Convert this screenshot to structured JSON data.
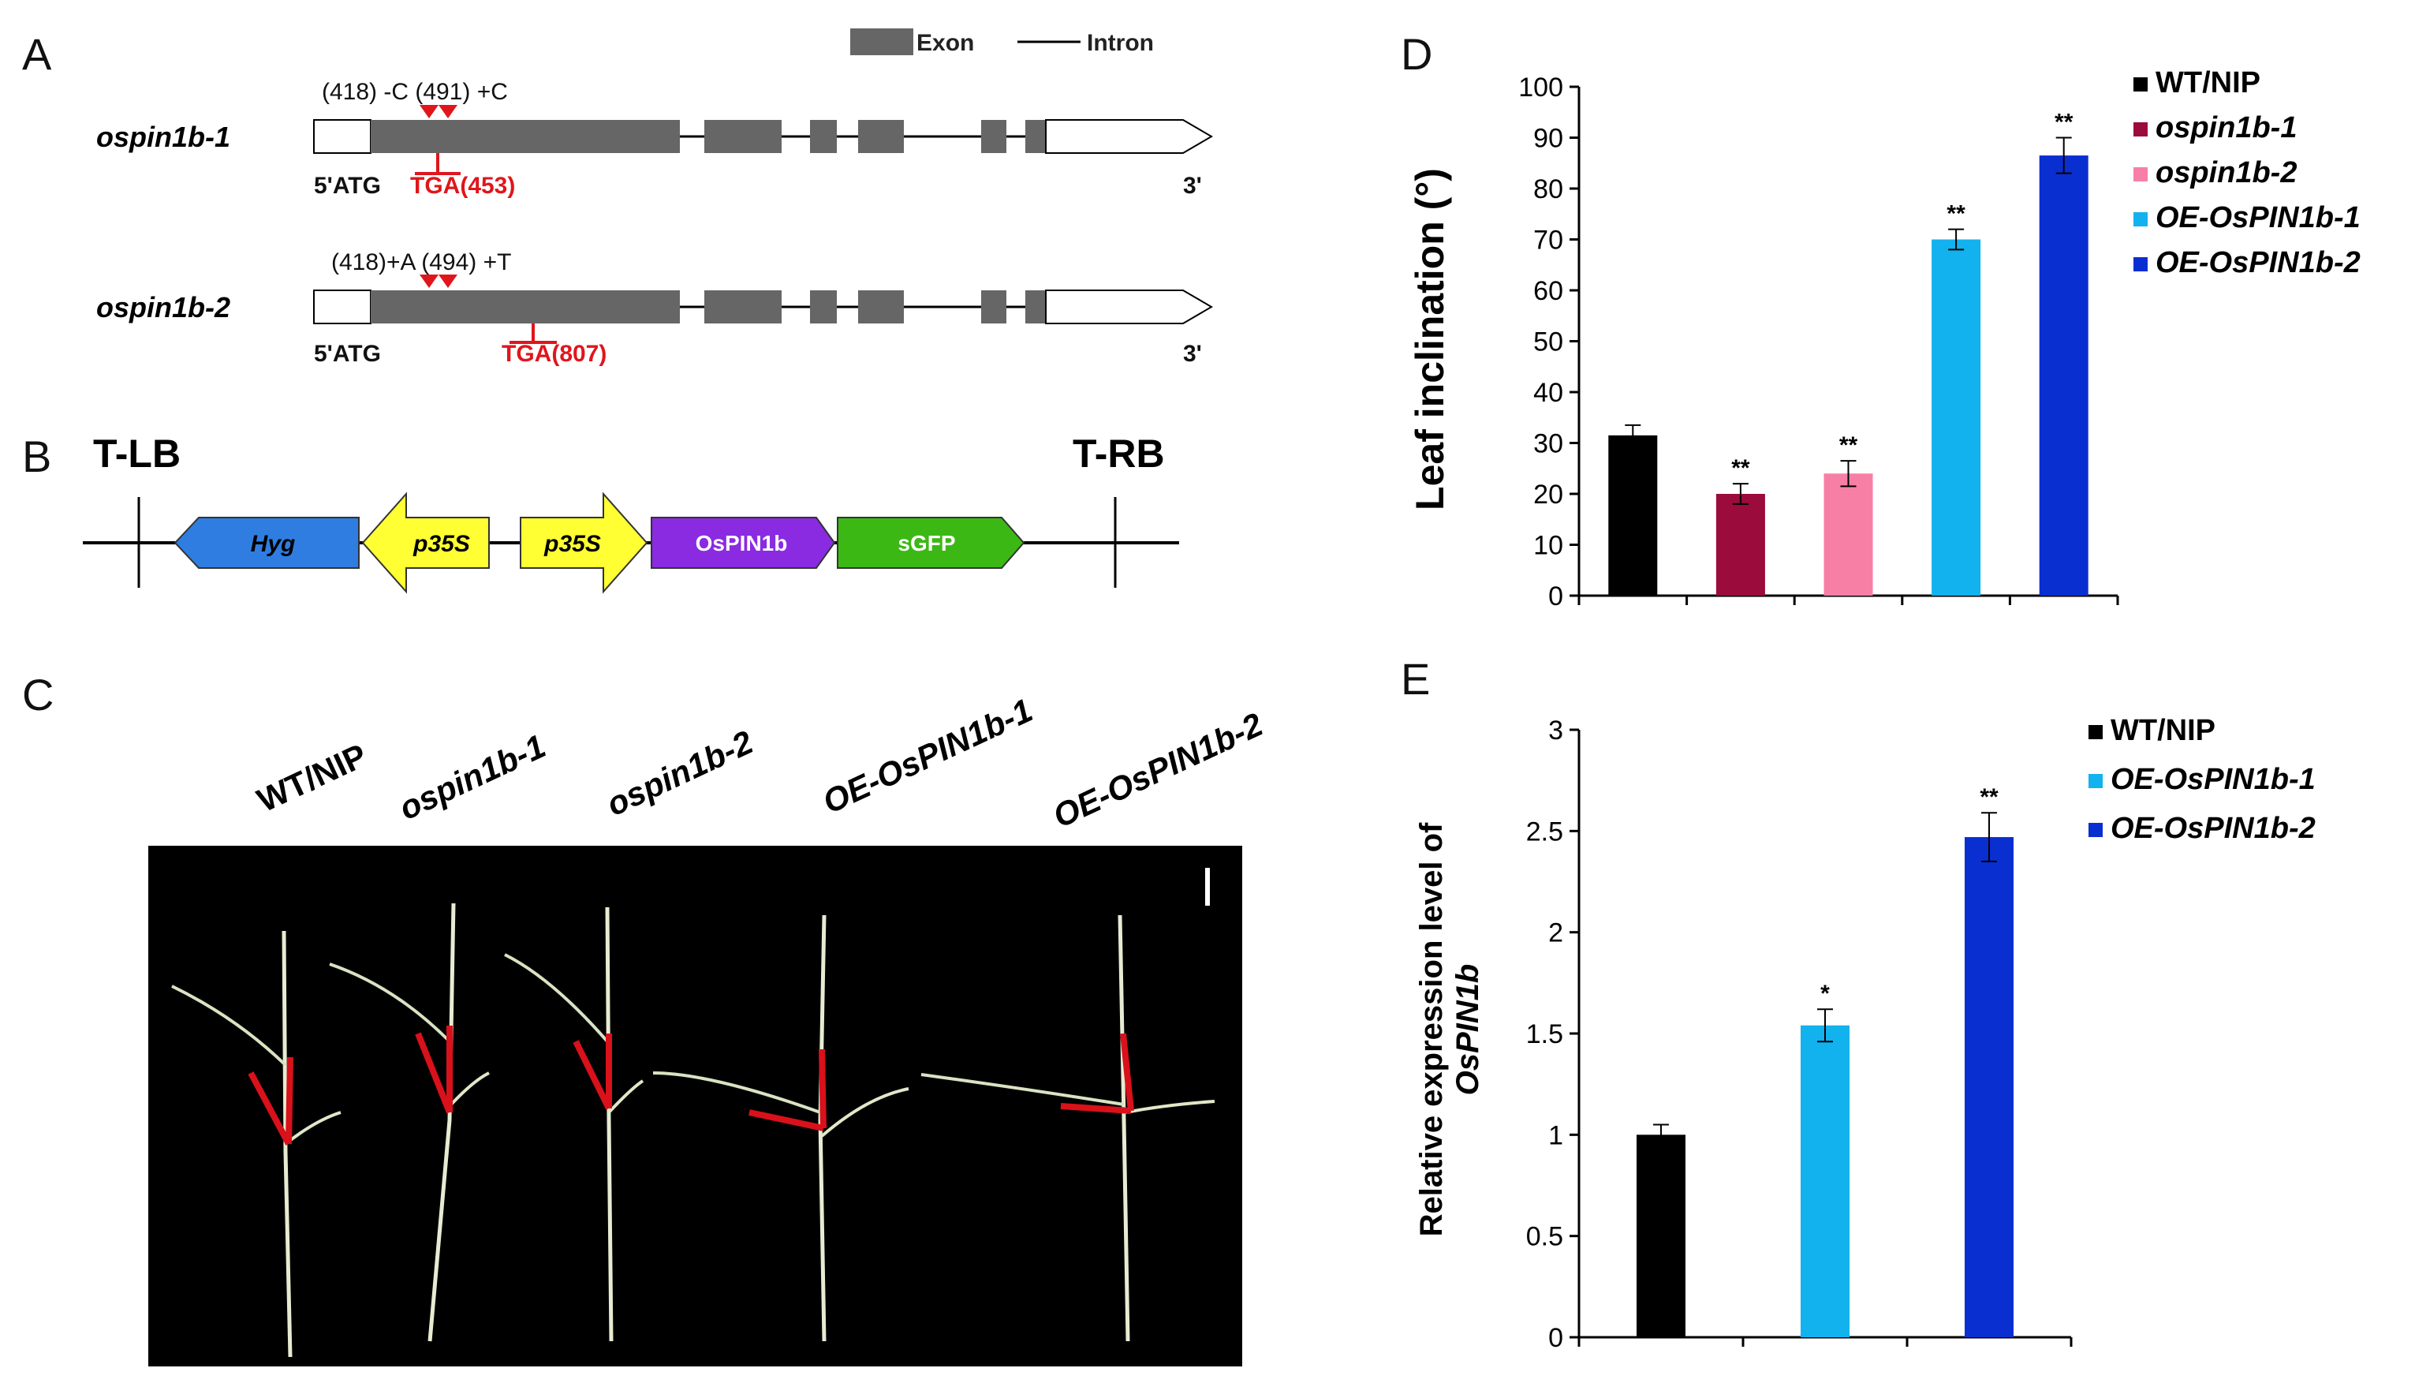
{
  "panels": {
    "a": "A",
    "b": "B",
    "c": "C",
    "d": "D",
    "e": "E"
  },
  "panel_a": {
    "legend": {
      "exon": "Exon",
      "intron": "Intron"
    },
    "genes": [
      {
        "name": "ospin1b-1",
        "mutation": "(418) -C (491) +C",
        "start": "5'ATG",
        "stop": "TGA(453)",
        "end": "3'"
      },
      {
        "name": "ospin1b-2",
        "mutation": "(418)+A (494) +T",
        "start": "5'ATG",
        "stop": "TGA(807)",
        "end": "3'"
      }
    ],
    "colors": {
      "exon": "#666666",
      "marker": "#e0161c"
    }
  },
  "panel_b": {
    "left_border": "T-LB",
    "right_border": "T-RB",
    "elements": [
      {
        "label": "Hyg",
        "color": "#2f7de1"
      },
      {
        "label": "p35S",
        "color": "#ffff33"
      },
      {
        "label": "p35S",
        "color": "#ffff33"
      },
      {
        "label": "OsPIN1b",
        "color": "#8a2be2"
      },
      {
        "label": "sGFP",
        "color": "#3cb815"
      }
    ]
  },
  "panel_c": {
    "genotypes": [
      "WT/NIP",
      "ospin1b-1",
      "ospin1b-2",
      "OE-OsPIN1b-1",
      "OE-OsPIN1b-2"
    ]
  },
  "chart_data": [
    {
      "type": "bar",
      "panel": "D",
      "title": "",
      "xlabel": "",
      "ylabel": "Leaf inclination (°)",
      "ylim": [
        0,
        100
      ],
      "yticks": [
        0,
        10,
        20,
        30,
        40,
        50,
        60,
        70,
        80,
        90,
        100
      ],
      "categories": [
        "WT/NIP",
        "ospin1b-1",
        "ospin1b-2",
        "OE-OsPIN1b-1",
        "OE-OsPIN1b-2"
      ],
      "values": [
        31.5,
        20,
        24,
        70,
        86.5
      ],
      "errors": [
        2,
        2,
        2.5,
        2,
        3.5
      ],
      "significance": [
        "",
        "**",
        "**",
        "**",
        "**"
      ],
      "colors": [
        "#000000",
        "#9b0b3c",
        "#f77fa6",
        "#12b2ee",
        "#0a2fd0"
      ],
      "legend": [
        "WT/NIP",
        "ospin1b-1",
        "ospin1b-2",
        "OE-OsPIN1b-1",
        "OE-OsPIN1b-2"
      ],
      "legend_position": "right"
    },
    {
      "type": "bar",
      "panel": "E",
      "title": "",
      "xlabel": "",
      "ylabel": "Relative expression level of",
      "ylabel_gene": "OsPIN1b",
      "ylim": [
        0,
        3
      ],
      "yticks": [
        "0",
        "0.5",
        "1",
        "1.5",
        "2",
        "2.5",
        "3"
      ],
      "categories": [
        "WT/NIP",
        "OE-OsPIN1b-1",
        "OE-OsPIN1b-2"
      ],
      "values": [
        1.0,
        1.54,
        2.47
      ],
      "errors": [
        0.05,
        0.08,
        0.12
      ],
      "significance": [
        "",
        "*",
        "**"
      ],
      "colors": [
        "#000000",
        "#12b2ee",
        "#0a2fd0"
      ],
      "legend": [
        "WT/NIP",
        "OE-OsPIN1b-1",
        "OE-OsPIN1b-2"
      ],
      "legend_position": "right"
    }
  ]
}
